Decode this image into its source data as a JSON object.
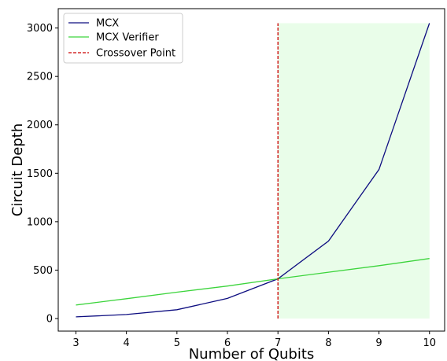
{
  "chart_data": {
    "type": "line",
    "xlabel": "Number of Qubits",
    "ylabel": "Circuit Depth",
    "x": [
      3,
      4,
      5,
      6,
      7,
      8,
      9,
      10
    ],
    "xlim": [
      2.65,
      10.3
    ],
    "ylim": [
      -130,
      3200
    ],
    "x_ticks": [
      3,
      4,
      5,
      6,
      7,
      8,
      9,
      10
    ],
    "y_ticks": [
      0,
      500,
      1000,
      1500,
      2000,
      2500,
      3000
    ],
    "grid": false,
    "legend_position": "top-left",
    "series": [
      {
        "name": "MCX",
        "color": "#0d0d80",
        "values": [
          17,
          41,
          91,
          208,
          410,
          800,
          1540,
          3050
        ]
      },
      {
        "name": "MCX Verifier",
        "color": "#3cd43c",
        "values": [
          140,
          205,
          272,
          335,
          410,
          478,
          546,
          620
        ]
      }
    ],
    "crossover": {
      "name": "Crossover Point",
      "x": 7,
      "y_range": [
        0,
        3050
      ],
      "color": "#cc0000",
      "style": "dashed"
    },
    "shaded_region": {
      "x_range": [
        7,
        10
      ],
      "y_range": [
        0,
        3050
      ],
      "color": "#e9fde9"
    }
  }
}
